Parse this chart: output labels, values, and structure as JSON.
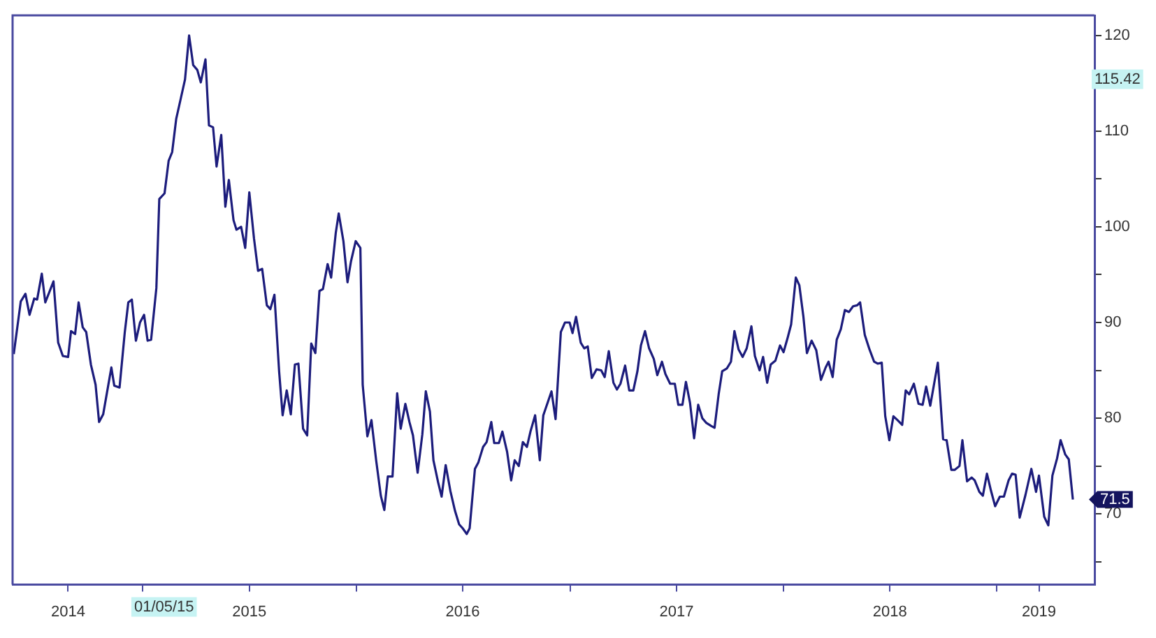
{
  "chart_data": {
    "type": "line",
    "x": [
      "2014-05-25",
      "2014-06-06",
      "2014-06-14",
      "2014-06-21",
      "2014-06-29",
      "2014-07-04",
      "2014-07-12",
      "2014-07-18",
      "2014-08-01",
      "2014-08-09",
      "2014-08-17",
      "2014-08-26",
      "2014-08-31",
      "2014-09-07",
      "2014-09-13",
      "2014-09-20",
      "2014-09-26",
      "2014-10-04",
      "2014-10-12",
      "2014-10-18",
      "2014-10-25",
      "2014-11-08",
      "2014-11-13",
      "2014-11-22",
      "2014-12-01",
      "2014-12-07",
      "2014-12-13",
      "2014-12-20",
      "2014-12-27",
      "2015-01-03",
      "2015-01-09",
      "2015-01-15",
      "2015-01-24",
      "2015-01-29",
      "2015-02-07",
      "2015-02-14",
      "2015-02-20",
      "2015-02-27",
      "2015-03-06",
      "2015-03-14",
      "2015-03-21",
      "2015-03-28",
      "2015-04-04",
      "2015-04-10",
      "2015-04-18",
      "2015-04-24",
      "2015-05-01",
      "2015-05-07",
      "2015-05-15",
      "2015-05-22",
      "2015-05-28",
      "2015-06-05",
      "2015-06-10",
      "2015-06-18",
      "2015-06-25",
      "2015-07-02",
      "2015-07-10",
      "2015-07-17",
      "2015-07-24",
      "2015-08-01",
      "2015-08-07",
      "2015-08-14",
      "2015-08-22",
      "2015-08-28",
      "2015-09-04",
      "2015-09-11",
      "2015-09-18",
      "2015-09-24",
      "2015-10-02",
      "2015-10-09",
      "2015-10-16",
      "2015-10-23",
      "2015-10-30",
      "2015-11-05",
      "2015-11-13",
      "2015-11-19",
      "2015-11-27",
      "2015-12-02",
      "2015-12-10",
      "2015-12-17",
      "2015-12-23",
      "2015-12-31",
      "2016-01-08",
      "2016-01-12",
      "2016-01-20",
      "2016-01-27",
      "2016-02-04",
      "2016-02-12",
      "2016-02-18",
      "2016-02-24",
      "2016-03-03",
      "2016-03-11",
      "2016-03-17",
      "2016-03-25",
      "2016-04-01",
      "2016-04-07",
      "2016-04-15",
      "2016-04-23",
      "2016-04-29",
      "2016-05-06",
      "2016-05-12",
      "2016-05-20",
      "2016-05-26",
      "2016-06-02",
      "2016-06-10",
      "2016-06-18",
      "2016-06-25",
      "2016-07-01",
      "2016-07-08",
      "2016-07-13",
      "2016-07-22",
      "2016-07-28",
      "2016-08-05",
      "2016-08-11",
      "2016-08-19",
      "2016-08-24",
      "2016-09-01",
      "2016-09-07",
      "2016-09-15",
      "2016-09-22",
      "2016-09-28",
      "2016-10-05",
      "2016-10-12",
      "2016-10-19",
      "2016-10-25",
      "2016-11-02",
      "2016-11-10",
      "2016-11-16",
      "2016-11-30",
      "2016-12-07",
      "2016-12-16",
      "2016-12-23",
      "2016-12-31",
      "2017-01-05",
      "2017-01-11",
      "2017-01-19",
      "2017-01-25",
      "2017-01-31",
      "2017-02-07",
      "2017-02-15",
      "2017-02-23",
      "2017-03-01",
      "2017-03-08",
      "2017-03-16",
      "2017-03-22",
      "2017-03-28",
      "2017-04-05",
      "2017-04-12",
      "2017-04-19",
      "2017-04-26",
      "2017-05-02",
      "2017-05-09",
      "2017-05-16",
      "2017-05-24",
      "2017-05-30",
      "2017-06-07",
      "2017-06-13",
      "2017-06-21",
      "2017-06-29",
      "2017-07-05",
      "2017-07-12",
      "2017-07-18",
      "2017-07-25",
      "2017-08-01",
      "2017-08-08",
      "2017-08-15",
      "2017-08-22",
      "2017-08-30",
      "2017-09-05",
      "2017-09-12",
      "2017-09-18",
      "2017-09-26",
      "2017-10-03",
      "2017-10-09",
      "2017-10-16",
      "2017-10-23",
      "2017-10-30",
      "2017-11-07",
      "2017-11-13",
      "2017-11-21",
      "2017-11-27",
      "2017-12-04",
      "2017-12-10",
      "2017-12-18",
      "2017-12-26",
      "2018-01-01",
      "2018-01-08",
      "2018-01-14",
      "2018-01-22",
      "2018-01-28",
      "2018-02-04",
      "2018-02-10",
      "2018-02-18",
      "2018-02-26",
      "2018-03-06",
      "2018-03-14",
      "2018-03-19",
      "2018-03-26",
      "2018-04-02",
      "2018-04-09",
      "2018-04-16",
      "2018-04-23",
      "2018-04-30",
      "2018-05-07",
      "2018-05-12",
      "2018-05-20",
      "2018-05-28",
      "2018-06-05",
      "2018-06-11",
      "2018-06-18",
      "2018-06-24",
      "2018-07-01",
      "2018-07-08",
      "2018-07-15",
      "2018-07-23",
      "2018-07-29",
      "2018-08-04",
      "2018-08-12",
      "2018-08-20",
      "2018-08-27",
      "2018-09-02",
      "2018-09-09",
      "2018-09-22",
      "2018-10-01",
      "2018-10-07",
      "2018-10-15",
      "2018-10-21",
      "2018-10-29",
      "2018-11-03",
      "2018-11-11",
      "2018-11-19",
      "2018-11-24",
      "2018-12-02",
      "2018-12-08",
      "2018-12-15",
      "2018-12-22",
      "2018-12-29",
      "2019-01-06",
      "2019-01-13",
      "2019-01-21",
      "2019-01-27",
      "2019-02-02",
      "2019-02-09",
      "2019-02-19",
      "2019-03-01",
      "2019-03-09",
      "2019-03-14",
      "2019-03-23",
      "2019-03-30",
      "2019-04-06",
      "2019-04-14",
      "2019-04-20",
      "2019-04-28",
      "2019-05-04",
      "2019-05-11"
    ],
    "series": [
      {
        "color": "#1c1c7c",
        "values": [
          86.7,
          92.2,
          93,
          90.8,
          92.5,
          92.4,
          95.1,
          92.1,
          94.3,
          87.9,
          86.5,
          86.4,
          89.1,
          88.8,
          92.1,
          89.5,
          89,
          85.6,
          83.5,
          79.6,
          80.4,
          85.3,
          83.4,
          83.2,
          89,
          92.1,
          92.4,
          88.1,
          90,
          90.8,
          88.1,
          88.2,
          93.6,
          102.9,
          103.5,
          106.9,
          107.8,
          111.3,
          113.2,
          115.4,
          120,
          116.9,
          116.4,
          115.1,
          117.5,
          110.6,
          110.4,
          106.3,
          109.6,
          102.1,
          104.9,
          100.7,
          99.7,
          100,
          97.8,
          103.6,
          98.8,
          95.4,
          95.6,
          91.8,
          91.4,
          92.9,
          84.9,
          80.3,
          82.9,
          80.4,
          85.6,
          85.7,
          78.9,
          78.2,
          87.8,
          86.8,
          93.3,
          93.5,
          96.1,
          94.7,
          99.4,
          101.4,
          98.5,
          94.2,
          96.4,
          98.5,
          97.8,
          83.5,
          78.1,
          79.8,
          75.6,
          71.9,
          70.4,
          73.9,
          73.9,
          82.6,
          78.9,
          81.5,
          79.6,
          78.2,
          74.3,
          78.3,
          82.8,
          80.7,
          75.6,
          73.3,
          71.8,
          75.1,
          72.4,
          70.3,
          68.9,
          68.5,
          67.9,
          68.5,
          74.7,
          75.4,
          77,
          77.5,
          79.6,
          77.4,
          77.4,
          78.6,
          76.5,
          73.5,
          75.6,
          75,
          77.5,
          77,
          78.6,
          80.3,
          75.6,
          80.3,
          82.8,
          79.9,
          89,
          90,
          90,
          88.9,
          90.6,
          87.9,
          87.3,
          87.5,
          84.2,
          85.1,
          85,
          84.3,
          87,
          83.7,
          83,
          83.6,
          85.5,
          82.9,
          82.9,
          84.9,
          87.6,
          89.1,
          87.3,
          86.2,
          84.5,
          85.9,
          84.6,
          83.6,
          83.6,
          81.4,
          81.4,
          83.8,
          81.6,
          77.9,
          81.4,
          80,
          79.5,
          79.2,
          79,
          82.5,
          84.9,
          85.2,
          85.9,
          89.1,
          87.2,
          86.4,
          87.3,
          89.6,
          86.5,
          85,
          86.4,
          83.7,
          85.6,
          86,
          87.6,
          86.9,
          88.4,
          89.8,
          94.7,
          93.9,
          90.6,
          86.8,
          88.1,
          87.1,
          84,
          85.3,
          85.9,
          84.3,
          88.2,
          89.3,
          91.3,
          91.1,
          91.7,
          91.8,
          92.1,
          88.7,
          87.2,
          85.9,
          85.7,
          85.8,
          80.2,
          77.7,
          80.2,
          79.8,
          79.3,
          82.9,
          82.5,
          83.6,
          81.5,
          81.4,
          83.3,
          81.3,
          85.8,
          77.8,
          77.7,
          74.6,
          74.6,
          75,
          77.7,
          73.4,
          73.8,
          73.5,
          72.3,
          71.9,
          74.2,
          72.4,
          70.8,
          71.8,
          71.8,
          73.5,
          74.2,
          74.1,
          69.6,
          72,
          74.7,
          72.3,
          74,
          69.7,
          68.8,
          74,
          75.8,
          77.7,
          76.2,
          75.7,
          71.5
        ]
      }
    ],
    "xlim": [
      "2014-05-23",
      "2019-06-17"
    ],
    "xticks": [
      {
        "value": "2014-08-26",
        "label": "2014"
      },
      {
        "value": "2015-01-01",
        "label": null
      },
      {
        "value": "2015-07-02",
        "label": "2015"
      },
      {
        "value": "2016-01-01",
        "label": null
      },
      {
        "value": "2016-07-01",
        "label": "2016"
      },
      {
        "value": "2017-01-01",
        "label": null
      },
      {
        "value": "2017-07-02",
        "label": "2017"
      },
      {
        "value": "2018-01-01",
        "label": null
      },
      {
        "value": "2018-07-02",
        "label": "2018"
      },
      {
        "value": "2019-01-01",
        "label": null
      },
      {
        "value": "2019-03-14",
        "label": "2019"
      }
    ],
    "ylim": [
      62.6,
      122.1
    ],
    "yticks": [
      {
        "value": 65,
        "label": null
      },
      70,
      {
        "value": 75,
        "label": null
      },
      80,
      {
        "value": 85,
        "label": null
      },
      90,
      {
        "value": 95,
        "label": null
      },
      100,
      {
        "value": 105,
        "label": null
      },
      110,
      {
        "value": 115,
        "label": null
      },
      120
    ],
    "annotations": [
      {
        "text": "115.42",
        "y": 115.42
      },
      "01/05/15",
      {
        "text": "71.5",
        "x": "2019-05-11",
        "y": 71.5
      }
    ],
    "grid": false,
    "legend": false,
    "marker": "none",
    "line_style": "solid"
  }
}
